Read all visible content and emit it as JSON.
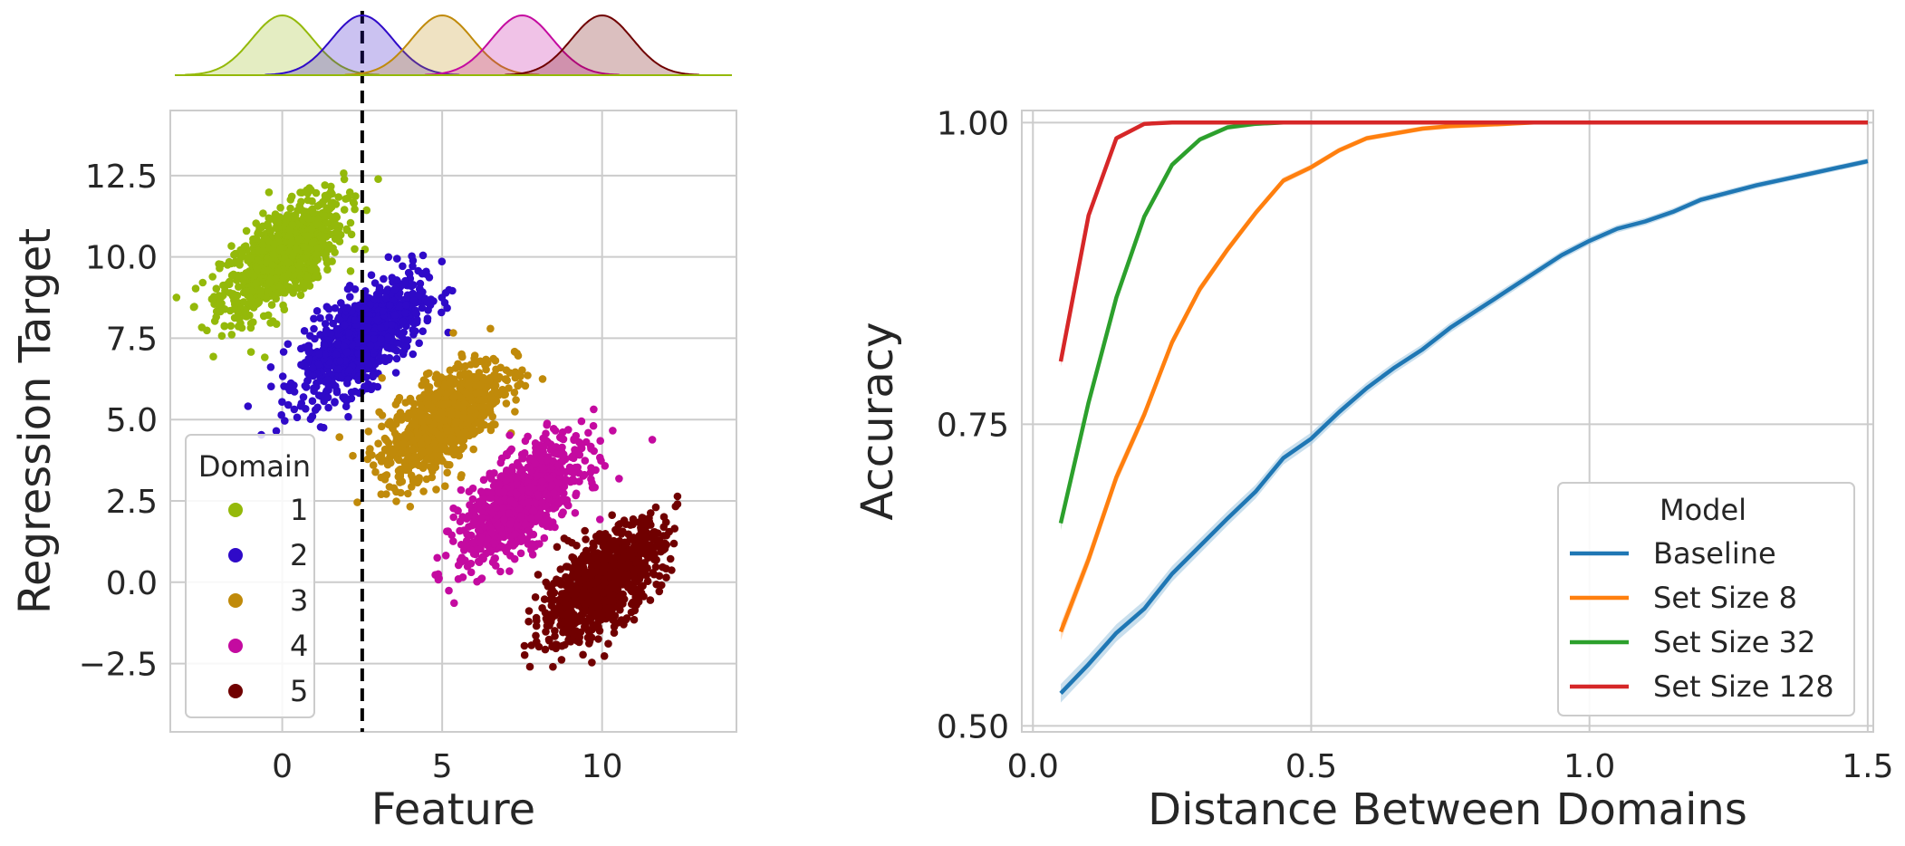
{
  "colors": {
    "grid": "#cccccc",
    "frame": "#cccccc",
    "text": "#262626",
    "divider": "#000000"
  },
  "chart_data": [
    {
      "type": "scatter",
      "title": "",
      "xlabel": "Feature",
      "ylabel": "Regression Target",
      "xlim": [
        -3.5,
        14.2
      ],
      "ylim": [
        -4.6,
        14.5
      ],
      "xticks": [
        0,
        5,
        10
      ],
      "xtick_labels": [
        "0",
        "5",
        "10"
      ],
      "yticks": [
        -2.5,
        0.0,
        2.5,
        5.0,
        7.5,
        10.0,
        12.5
      ],
      "ytick_labels": [
        "−2.5",
        "0.0",
        "2.5",
        "5.0",
        "7.5",
        "10.0",
        "12.5"
      ],
      "grid": true,
      "threshold_x": 2.5,
      "legend": {
        "title": "Domain",
        "placement": "lower-left"
      },
      "series": [
        {
          "name": "1",
          "color": "#94b90a",
          "center": [
            0.0,
            10.0
          ],
          "sd_x": 0.95,
          "sd_y": 0.9,
          "corr": 0.65
        },
        {
          "name": "2",
          "color": "#2f0ac8",
          "center": [
            2.5,
            7.5
          ],
          "sd_x": 0.95,
          "sd_y": 0.9,
          "corr": 0.65
        },
        {
          "name": "3",
          "color": "#c08a0a",
          "center": [
            5.0,
            5.0
          ],
          "sd_x": 0.95,
          "sd_y": 0.9,
          "corr": 0.65
        },
        {
          "name": "4",
          "color": "#c40aa0",
          "center": [
            7.5,
            2.5
          ],
          "sd_x": 0.95,
          "sd_y": 0.9,
          "corr": 0.65
        },
        {
          "name": "5",
          "color": "#700000",
          "center": [
            10.0,
            0.0
          ],
          "sd_x": 0.95,
          "sd_y": 0.9,
          "corr": 0.65
        }
      ]
    },
    {
      "type": "line",
      "title": "",
      "xlabel": "Distance Between Domains",
      "ylabel": "Accuracy",
      "xlim": [
        -0.02,
        1.51
      ],
      "ylim": [
        0.495,
        1.01
      ],
      "xticks": [
        0.0,
        0.5,
        1.0,
        1.5
      ],
      "xtick_labels": [
        "0.0",
        "0.5",
        "1.0",
        "1.5"
      ],
      "yticks": [
        0.5,
        0.75,
        1.0
      ],
      "ytick_labels": [
        "0.50",
        "0.75",
        "1.00"
      ],
      "grid": true,
      "legend": {
        "title": "Model",
        "placement": "lower-right"
      },
      "x": [
        0.05,
        0.1,
        0.15,
        0.2,
        0.25,
        0.3,
        0.35,
        0.4,
        0.45,
        0.5,
        0.55,
        0.6,
        0.65,
        0.7,
        0.75,
        0.8,
        0.85,
        0.9,
        0.95,
        1.0,
        1.05,
        1.1,
        1.15,
        1.2,
        1.25,
        1.3,
        1.35,
        1.4,
        1.45,
        1.5
      ],
      "series": [
        {
          "name": "Baseline",
          "color": "#1f77b4",
          "values": [
            0.527,
            0.551,
            0.577,
            0.597,
            0.626,
            0.649,
            0.672,
            0.694,
            0.722,
            0.738,
            0.76,
            0.78,
            0.797,
            0.812,
            0.83,
            0.845,
            0.86,
            0.875,
            0.89,
            0.902,
            0.912,
            0.918,
            0.926,
            0.936,
            0.942,
            0.948,
            0.953,
            0.958,
            0.963,
            0.968
          ]
        },
        {
          "name": "Set Size 8",
          "color": "#ff7f0e",
          "values": [
            0.578,
            0.638,
            0.706,
            0.758,
            0.818,
            0.862,
            0.895,
            0.925,
            0.952,
            0.963,
            0.977,
            0.987,
            0.991,
            0.995,
            0.997,
            0.998,
            0.999,
            1.0,
            1.0,
            1.0,
            1.0,
            1.0,
            1.0,
            1.0,
            1.0,
            1.0,
            1.0,
            1.0,
            1.0,
            1.0
          ]
        },
        {
          "name": "Set Size 32",
          "color": "#2ca02c",
          "values": [
            0.668,
            0.768,
            0.855,
            0.922,
            0.965,
            0.986,
            0.996,
            0.999,
            1.0,
            1.0,
            1.0,
            1.0,
            1.0,
            1.0,
            1.0,
            1.0,
            1.0,
            1.0,
            1.0,
            1.0,
            1.0,
            1.0,
            1.0,
            1.0,
            1.0,
            1.0,
            1.0,
            1.0,
            1.0,
            1.0
          ]
        },
        {
          "name": "Set Size 128",
          "color": "#d62728",
          "values": [
            0.802,
            0.923,
            0.987,
            0.999,
            1.0,
            1.0,
            1.0,
            1.0,
            1.0,
            1.0,
            1.0,
            1.0,
            1.0,
            1.0,
            1.0,
            1.0,
            1.0,
            1.0,
            1.0,
            1.0,
            1.0,
            1.0,
            1.0,
            1.0,
            1.0,
            1.0,
            1.0,
            1.0,
            1.0,
            1.0
          ]
        }
      ]
    }
  ]
}
